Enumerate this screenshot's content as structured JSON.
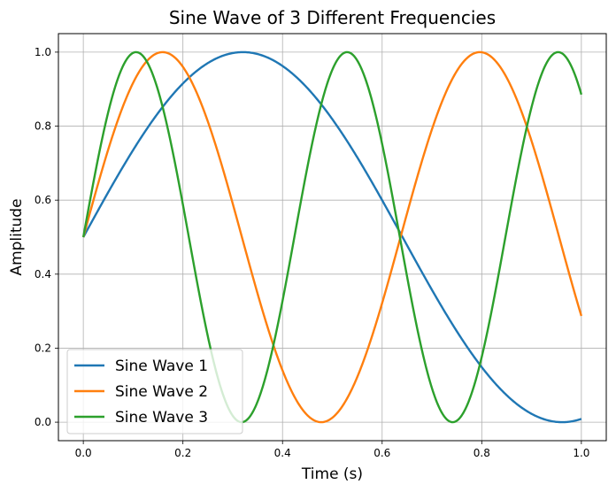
{
  "chart_data": {
    "type": "line",
    "title": "Sine Wave of 3 Different Frequencies",
    "xlabel": "Time (s)",
    "ylabel": "Amplitude",
    "xlim": [
      -0.05,
      1.05
    ],
    "ylim": [
      -0.05,
      1.05
    ],
    "grid": true,
    "legend_position": "bottom-left",
    "x_ticks": [
      0.0,
      0.2,
      0.4,
      0.6,
      0.8,
      1.0
    ],
    "x_tick_labels": [
      "0.0",
      "0.2",
      "0.4",
      "0.6",
      "0.8",
      "1.0"
    ],
    "y_ticks": [
      0.0,
      0.2,
      0.4,
      0.6,
      0.8,
      1.0
    ],
    "y_tick_labels": [
      "0.0",
      "0.2",
      "0.4",
      "0.6",
      "0.8",
      "1.0"
    ],
    "x_range": [
      0,
      1
    ],
    "series": [
      {
        "name": "Sine Wave 1",
        "formula": "0.5 + 0.5*sin(2*pi*0.78*t)",
        "frequency_hz": 0.78,
        "color": "#1f77b4"
      },
      {
        "name": "Sine Wave 2",
        "formula": "0.5 + 0.5*sin(2*pi*1.57*t)",
        "frequency_hz": 1.57,
        "color": "#ff7f0e"
      },
      {
        "name": "Sine Wave 3",
        "formula": "0.5 + 0.5*sin(2*pi*2.36*t)",
        "frequency_hz": 2.36,
        "color": "#2ca02c"
      }
    ]
  }
}
